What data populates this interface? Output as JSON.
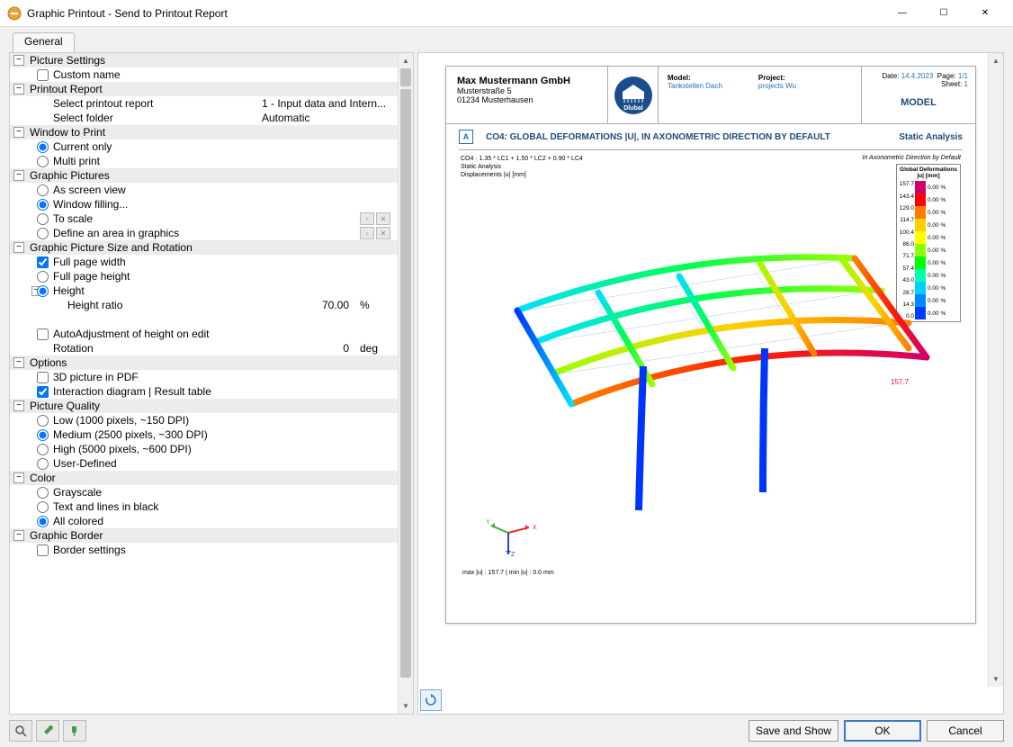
{
  "window": {
    "title": "Graphic Printout - Send to Printout Report",
    "minimize": "—",
    "maximize": "☐",
    "close": "✕"
  },
  "tabs": {
    "general": "General"
  },
  "sections": {
    "pictureSettings": {
      "title": "Picture Settings",
      "customName": "Custom name"
    },
    "printoutReport": {
      "title": "Printout Report",
      "selectReport": "Select printout report",
      "selectReportVal": "1 - Input data and Intern...",
      "selectFolder": "Select folder",
      "selectFolderVal": "Automatic"
    },
    "windowToPrint": {
      "title": "Window to Print",
      "currentOnly": "Current only",
      "multiPrint": "Multi print"
    },
    "graphicPictures": {
      "title": "Graphic Pictures",
      "asScreen": "As screen view",
      "windowFilling": "Window filling...",
      "toScale": "To scale",
      "defineArea": "Define an area in graphics"
    },
    "sizeRotation": {
      "title": "Graphic Picture Size and Rotation",
      "fullWidth": "Full page width",
      "fullHeight": "Full page height",
      "height": "Height",
      "heightRatio": "Height ratio",
      "heightRatioVal": "70.00",
      "heightRatioUnit": "%",
      "autoAdjust": "AutoAdjustment of height on edit",
      "rotation": "Rotation",
      "rotationVal": "0",
      "rotationUnit": "deg"
    },
    "options": {
      "title": "Options",
      "picture3d": "3D picture in PDF",
      "interaction": "Interaction diagram | Result table"
    },
    "pictureQuality": {
      "title": "Picture Quality",
      "low": "Low (1000 pixels, ~150 DPI)",
      "medium": "Medium (2500 pixels, ~300 DPI)",
      "high": "High (5000 pixels, ~600 DPI)",
      "user": "User-Defined"
    },
    "color": {
      "title": "Color",
      "grayscale": "Grayscale",
      "textLines": "Text and lines in black",
      "allColored": "All colored"
    },
    "graphicBorder": {
      "title": "Graphic Border",
      "borderSettings": "Border settings"
    }
  },
  "doc": {
    "company": "Max Mustermann GmbH",
    "street": "Musterstraße 5",
    "city": "01234 Musterhausen",
    "logoText": "Dlubal",
    "modelLbl": "Model:",
    "modelVal": "Tankstellen Dach",
    "projectLbl": "Project:",
    "projectVal": "projects Wu",
    "dateLbl": "Date:",
    "dateVal": "14.4.2023",
    "pageLbl": "Page:",
    "pageVal": "1/1",
    "sheetLbl": "Sheet:",
    "sheetVal": "1",
    "modelBig": "MODEL",
    "titleLetter": "A",
    "title": "CO4: GLOBAL DEFORMATIONS |U|, IN AXONOMETRIC DIRECTION BY DEFAULT",
    "titleRight": "Static Analysis",
    "subLine1": "CO4 · 1.35 * LC1 + 1.50 * LC2 + 0.90 * LC4",
    "subLine2": "Static Analysis",
    "subLine3": "Displacements |u| [mm]",
    "subRight": "In Axonometric Direction by Default",
    "legendHdr1": "Global Deformations",
    "legendHdr2": "|u| [mm]",
    "ticks": [
      "157.7",
      "143.4",
      "129.0",
      "114.7",
      "100.4",
      "86.0",
      "71.7",
      "57.4",
      "43.0",
      "28.7",
      "14.3",
      "0.0"
    ],
    "pcts": [
      "0.00 %",
      "0.00 %",
      "0.00 %",
      "0.00 %",
      "0.00 %",
      "0.00 %",
      "0.00 %",
      "0.00 %",
      "0.00 %",
      "0.00 %",
      "0.00 %"
    ],
    "barColors": [
      "#d4006a",
      "#ff0000",
      "#ff7a00",
      "#ffd000",
      "#ffff00",
      "#8cff00",
      "#00ff00",
      "#00ffb0",
      "#00d0ff",
      "#0088ff",
      "#003cff"
    ],
    "maxU": "157.7",
    "footerTxt": "max |u| : 157.7 | min |u| : 0.0 mm"
  },
  "buttons": {
    "saveShow": "Save and Show",
    "ok": "OK",
    "cancel": "Cancel"
  }
}
